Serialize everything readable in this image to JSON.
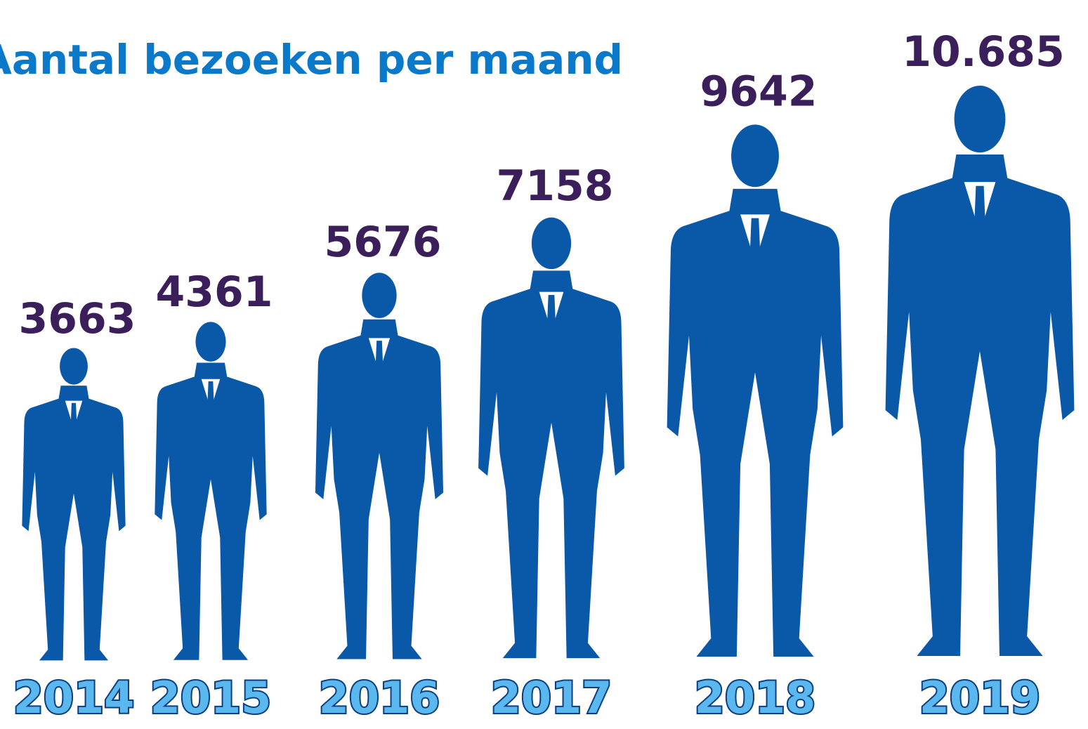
{
  "chart_data": {
    "type": "pictograph",
    "title": "Aantal bezoeken per maand",
    "categories": [
      "2014",
      "2015",
      "2016",
      "2017",
      "2018",
      "2019"
    ],
    "values": [
      3663,
      4361,
      5676,
      7158,
      9642,
      10685
    ],
    "value_labels": [
      "3663",
      "4361",
      "5676",
      "7158",
      "9642",
      "10.685"
    ],
    "color": "#0a58a8"
  }
}
